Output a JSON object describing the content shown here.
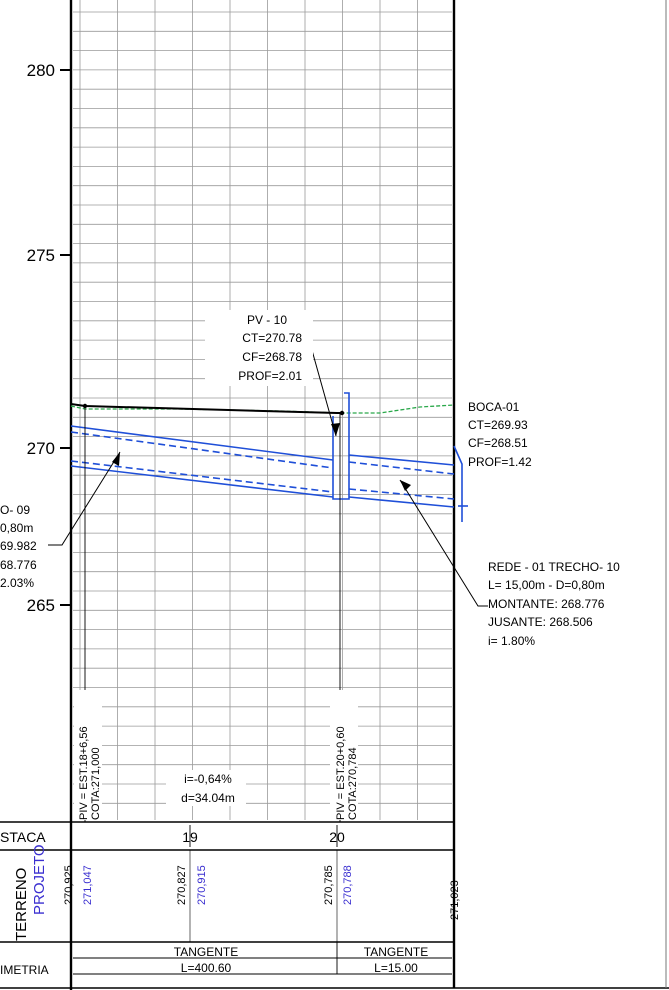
{
  "colors": {
    "grid": "#9a9a9a",
    "pipe": "#1f4fd8",
    "terrain": "#2aa84a",
    "projeto_text": "#3a2fd0",
    "ink": "#000000"
  },
  "axis": {
    "y_ticks": [
      "280",
      "275",
      "270",
      "265"
    ]
  },
  "pv10": {
    "title": "PV - 10",
    "ct": "CT=270.78",
    "cf": "CF=268.78",
    "prof": "PROF=2.01"
  },
  "boca01": {
    "title": "BOCA-01",
    "ct": "CT=269.93",
    "cf": "CF=268.51",
    "prof": "PROF=1.42"
  },
  "trecho09_partial": {
    "line1": "O- 09",
    "line2": "0,80m",
    "line3": "69.982",
    "line4": "68.776",
    "line5": "2.03%"
  },
  "trecho10": {
    "line1": "REDE - 01 TRECHO- 10",
    "line2": "L= 15,00m - D=0,80m",
    "line3": "MONTANTE: 268.776",
    "line4": "JUSANTE: 268.506",
    "line5": "i= 1.80%"
  },
  "piv_labels": {
    "left_est": "PIV = EST.18+6,56",
    "left_cota": "COTA:271,000",
    "right_est": "PIV = EST.20+0,60",
    "right_cota": "COTA:270,784"
  },
  "slope": {
    "i": "i=-0,64%",
    "d": "d=34.04m"
  },
  "table": {
    "estaca_label": "STACA",
    "stations": [
      "19",
      "20"
    ],
    "terreno_label": "TERRENO",
    "projeto_label": "PROJETO",
    "terreno_values": [
      "270,925",
      "270,827",
      "270,785",
      "271,023"
    ],
    "projeto_values": [
      "271,047",
      "270,915",
      "270,788"
    ],
    "planimetria_label": "IMETRIA",
    "segments": [
      {
        "name": "TANGENTE",
        "length": "L=400.60"
      },
      {
        "name": "TANGENTE",
        "length": "L=15.00"
      }
    ]
  }
}
